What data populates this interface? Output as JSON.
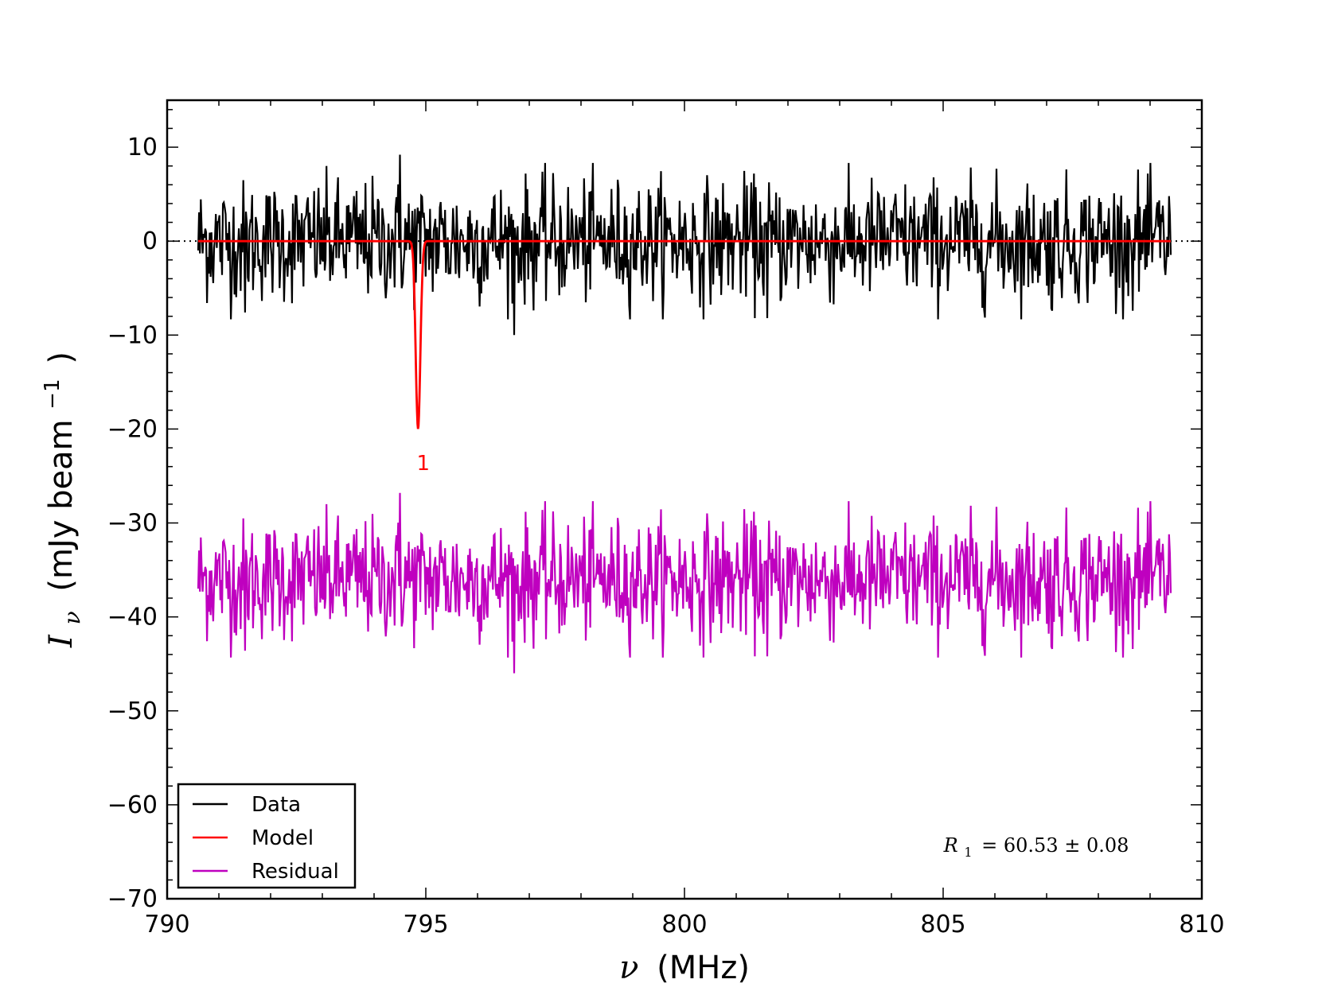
{
  "chart_data": {
    "type": "line",
    "xlabel": "ν (MHz)",
    "xlabel_symbol": "ν",
    "xlabel_unit": "(MHz)",
    "ylabel": "Iν (mJy beam−1)",
    "ylabel_symbol": "I",
    "ylabel_subscript": "ν",
    "ylabel_unit": "(mJy beam",
    "ylabel_exp": "−1",
    "ylabel_close": ")",
    "xlim": [
      790,
      810
    ],
    "ylim": [
      -70,
      15
    ],
    "x_ticks": [
      790,
      795,
      800,
      805,
      810
    ],
    "x_tick_labels": [
      "790",
      "795",
      "800",
      "805",
      "810"
    ],
    "y_ticks": [
      -70,
      -60,
      -50,
      -40,
      -30,
      -20,
      -10,
      0,
      10
    ],
    "y_tick_labels": [
      "−70",
      "−60",
      "−50",
      "−40",
      "−30",
      "−20",
      "−10",
      "0",
      "10"
    ],
    "grid": false,
    "legend_position": "bottom-left",
    "x_start": 790.6,
    "x_end": 809.4,
    "series": [
      {
        "name": "Data",
        "color": "#000000",
        "noise_sigma": 3.2,
        "offset": 0,
        "extremes": [
          [
            794.5,
            9.2
          ],
          [
            796.7,
            -10
          ],
          [
            801.6,
            -8.2
          ],
          [
            791.5,
            -7.6
          ],
          [
            807.1,
            -7.4
          ]
        ]
      },
      {
        "name": "Model",
        "color": "#ff0000",
        "profile": "gaussian",
        "center": 794.85,
        "depth": -20,
        "sigma": 0.045,
        "baseline": 0
      },
      {
        "name": "Residual",
        "color": "#bf00bf",
        "noise_sigma": 3.2,
        "offset": -36,
        "extremes": [
          [
            794.5,
            -27
          ],
          [
            796.7,
            -46.5
          ],
          [
            801.6,
            -44.5
          ],
          [
            791.5,
            -44
          ],
          [
            807.1,
            -43.8
          ]
        ]
      }
    ],
    "peak_label": {
      "text": "1",
      "x": 794.95,
      "y": -23.5,
      "color": "#ff0000"
    },
    "annotation": {
      "text": "R1 = 60.53 ± 0.08",
      "symbol": "R",
      "subscript": "1",
      "value": "= 60.53 ± 0.08",
      "x": 806.8,
      "y": -65
    },
    "zero_line": {
      "y": 0,
      "style": "dotted"
    }
  }
}
